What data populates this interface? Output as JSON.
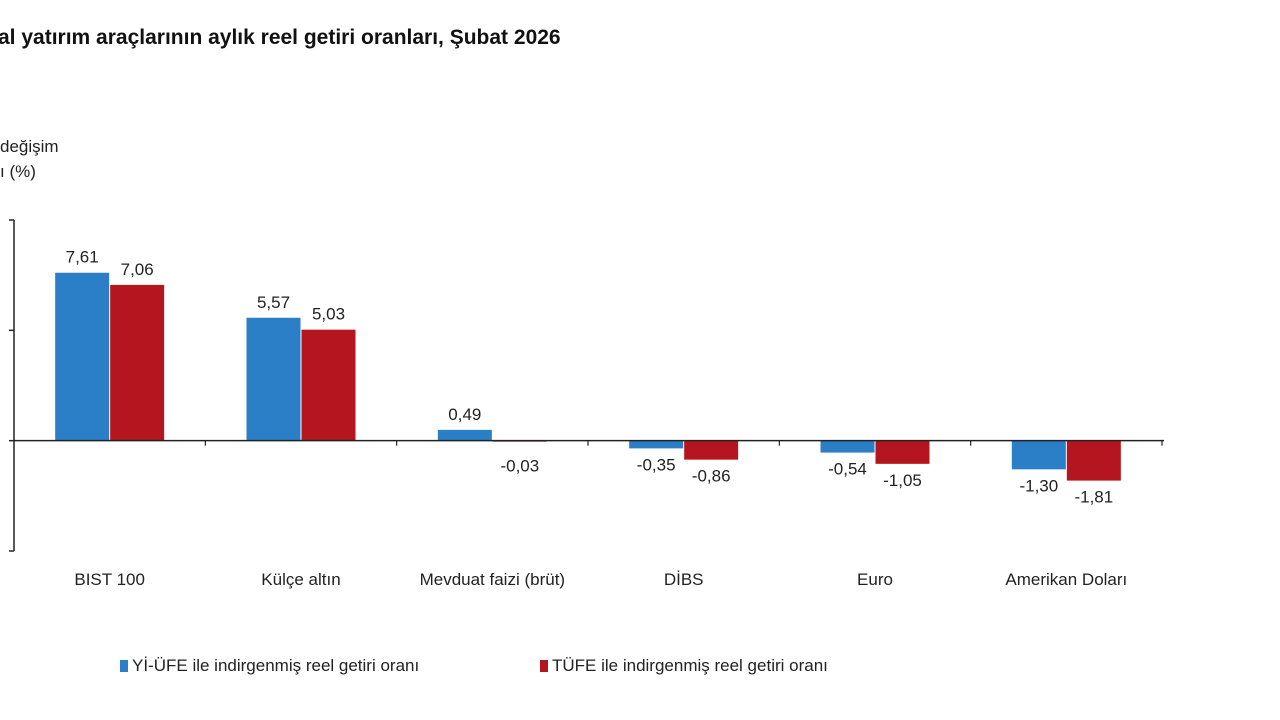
{
  "chart_data": {
    "type": "bar",
    "title": "al yatırım araçlarının aylık reel getiri oranları, Şubat 2026",
    "ylabel_lines": [
      "değişim",
      "ı (%)"
    ],
    "categories": [
      "BIST 100",
      "Külçe altın",
      "Mevduat faizi (brüt)",
      "DİBS",
      "Euro",
      "Amerikan Doları"
    ],
    "series": [
      {
        "name": "Yİ-ÜFE ile indirgenmiş reel getiri oranı",
        "color": "#2a7fc7",
        "values": [
          7.61,
          5.57,
          0.49,
          -0.35,
          -0.54,
          -1.3
        ],
        "labels": [
          "7,61",
          "5,57",
          "0,49",
          "-0,35",
          "-0,54",
          "-1,30"
        ]
      },
      {
        "name": "TÜFE ile indirgenmiş reel getiri oranı",
        "color": "#b5151f",
        "values": [
          7.06,
          5.03,
          -0.03,
          -0.86,
          -1.05,
          -1.81
        ],
        "labels": [
          "7,06",
          "5,03",
          "-0,03",
          "-0,86",
          "-1,05",
          "-1,81"
        ]
      }
    ],
    "ylim": [
      -5,
      10
    ],
    "yticks": [
      -5,
      0,
      5,
      10
    ],
    "grid": false,
    "legend": "bottom"
  }
}
